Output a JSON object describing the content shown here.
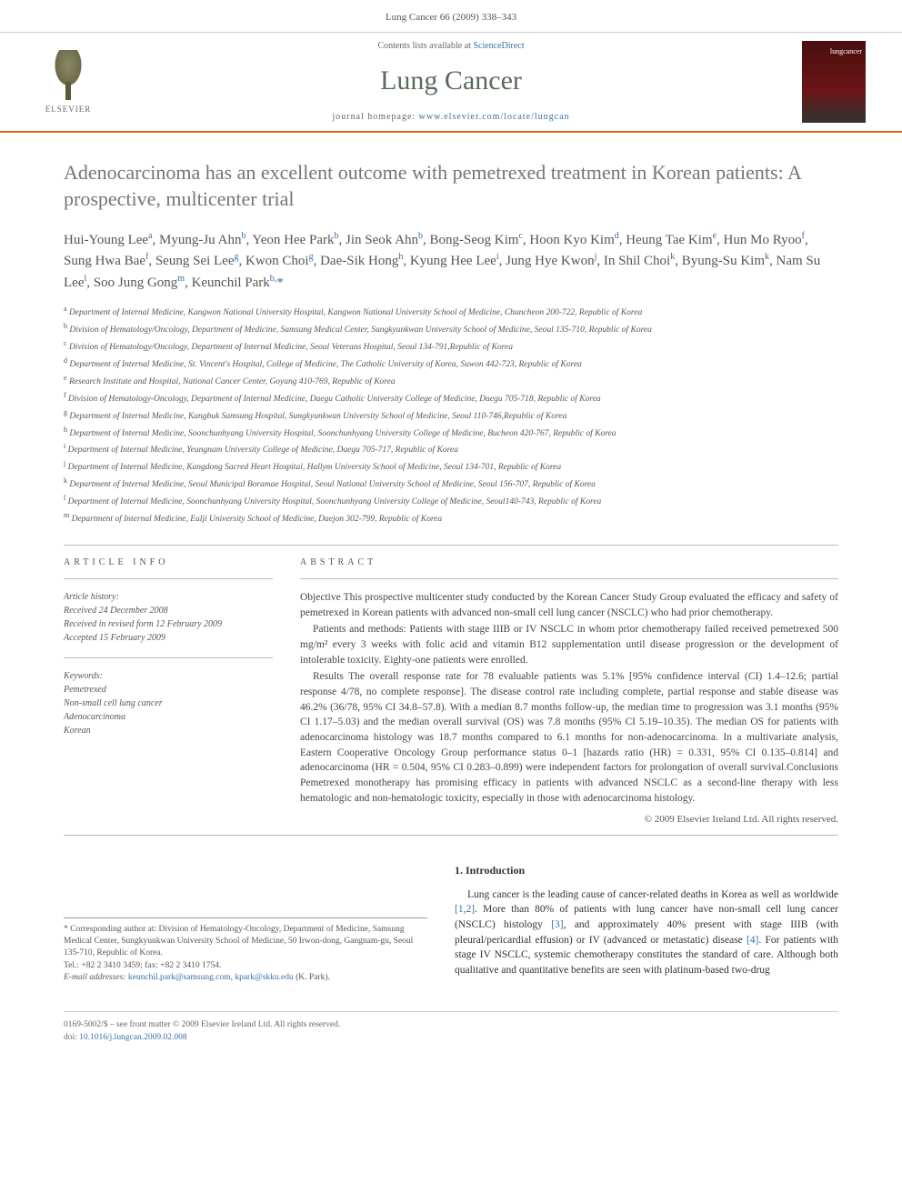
{
  "header": {
    "running_head": "Lung Cancer 66 (2009) 338–343"
  },
  "masthead": {
    "publisher": "ELSEVIER",
    "contents_prefix": "Contents lists available at ",
    "contents_link": "ScienceDirect",
    "journal": "Lung Cancer",
    "homepage_prefix": "journal homepage: ",
    "homepage_url": "www.elsevier.com/locate/lungcan",
    "cover_label": "lungcancer"
  },
  "article": {
    "title": "Adenocarcinoma has an excellent outcome with pemetrexed treatment in Korean patients: A prospective, multicenter trial",
    "authors_html": "Hui-Young Lee<sup>a</sup>, Myung-Ju Ahn<sup>b</sup>, Yeon Hee Park<sup>b</sup>, Jin Seok Ahn<sup>b</sup>, Bong-Seog Kim<sup>c</sup>, Hoon Kyo Kim<sup>d</sup>, Heung Tae Kim<sup>e</sup>, Hun Mo Ryoo<sup>f</sup>, Sung Hwa Bae<sup>f</sup>, Seung Sei Lee<sup>g</sup>, Kwon Choi<sup>g</sup>, Dae-Sik Hong<sup>h</sup>, Kyung Hee Lee<sup>i</sup>, Jung Hye Kwon<sup>j</sup>, In Shil Choi<sup>k</sup>, Byung-Su Kim<sup>k</sup>, Nam Su Lee<sup>l</sup>, Soo Jung Gong<sup>m</sup>, Keunchil Park<sup>b,</sup><span class=\"corr\">*</span>",
    "affiliations": [
      {
        "key": "a",
        "text": "Department of Internal Medicine, Kangwon National University Hospital, Kangwon National University School of Medicine, Chuncheon 200-722, Republic of Korea"
      },
      {
        "key": "b",
        "text": "Division of Hematology/Oncology, Department of Medicine, Samsung Medical Center, Sungkyunkwan University School of Medicine, Seoul 135-710, Republic of Korea"
      },
      {
        "key": "c",
        "text": "Division of Hematology/Oncology, Department of Internal Medicine, Seoul Veterans Hospital, Seoul 134-791,Republic of Korea"
      },
      {
        "key": "d",
        "text": "Department of Internal Medicine, St. Vincent's Hospital, College of Medicine, The Catholic University of Korea, Suwon 442-723, Republic of Korea"
      },
      {
        "key": "e",
        "text": "Research Institute and Hospital, National Cancer Center, Goyang 410-769, Republic of Korea"
      },
      {
        "key": "f",
        "text": "Division of Hematology-Oncology, Department of Internal Medicine, Daegu Catholic University College of Medicine, Daegu 705-718, Republic of Korea"
      },
      {
        "key": "g",
        "text": "Department of Internal Medicine, Kangbuk Samsung Hospital, Sungkyunkwan University School of Medicine, Seoul 110-746,Republic of Korea"
      },
      {
        "key": "h",
        "text": "Department of Internal Medicine, Soonchunhyang University Hospital, Soonchunhyang University College of Medicine, Bucheon 420-767, Republic of Korea"
      },
      {
        "key": "i",
        "text": "Department of Internal Medicine, Yeungnam University College of Medicine, Daegu 705-717, Republic of Korea"
      },
      {
        "key": "j",
        "text": "Department of Internal Medicine, Kangdong Sacred Heart Hospital, Hallym University School of Medicine, Seoul 134-701, Republic of Korea"
      },
      {
        "key": "k",
        "text": "Department of Internal Medicine, Seoul Municipal Boramae Hospital, Seoul National University School of Medicine, Seoul 156-707, Republic of Korea"
      },
      {
        "key": "l",
        "text": "Department of Internal Medicine, Soonchunhyang University Hospital, Soonchunhyang University College of Medicine, Seoul140-743, Republic of Korea"
      },
      {
        "key": "m",
        "text": "Department of Internal Medicine, Eulji University School of Medicine, Daejon 302-799, Republic of Korea"
      }
    ]
  },
  "article_info": {
    "label": "ARTICLE INFO",
    "history_label": "Article history:",
    "received": "Received 24 December 2008",
    "revised": "Received in revised form 12 February 2009",
    "accepted": "Accepted 15 February 2009",
    "keywords_label": "Keywords:",
    "keywords": [
      "Pemetrexed",
      "Non-small cell lung cancer",
      "Adenocarcinoma",
      "Korean"
    ]
  },
  "abstract": {
    "label": "ABSTRACT",
    "paragraphs": [
      "Objective This prospective multicenter study conducted by the Korean Cancer Study Group evaluated the efficacy and safety of pemetrexed in Korean patients with advanced non-small cell lung cancer (NSCLC) who had prior chemotherapy.",
      "Patients and methods: Patients with stage IIIB or IV NSCLC in whom prior chemotherapy failed received pemetrexed 500 mg/m² every 3 weeks with folic acid and vitamin B12 supplementation until disease progression or the development of intolerable toxicity. Eighty-one patients were enrolled.",
      "Results The overall response rate for 78 evaluable patients was 5.1% [95% confidence interval (CI) 1.4–12.6; partial response 4/78, no complete response]. The disease control rate including complete, partial response and stable disease was 46.2% (36/78, 95% CI 34.8–57.8). With a median 8.7 months follow-up, the median time to progression was 3.1 months (95% CI 1.17–5.03) and the median overall survival (OS) was 7.8 months (95% CI 5.19–10.35). The median OS for patients with adenocarcinoma histology was 18.7 months compared to 6.1 months for non-adenocarcinoma. In a multivariate analysis, Eastern Cooperative Oncology Group performance status 0–1 [hazards ratio (HR) = 0.331, 95% CI 0.135–0.814] and adenocarcinoma (HR = 0.504, 95% CI 0.283–0.899) were independent factors for prolongation of overall survival.Conclusions Pemetrexed monotherapy has promising efficacy in patients with advanced NSCLC as a second-line therapy with less hematologic and non-hematologic toxicity, especially in those with adenocarcinoma histology."
    ],
    "copyright": "© 2009 Elsevier Ireland Ltd. All rights reserved."
  },
  "corresponding": {
    "marker": "*",
    "label": "Corresponding author at: ",
    "text": "Division of Hematology-Oncology, Department of Medicine, Samsung Medical Center, Sungkyunkwan University School of Medicine, 50 Irwon-dong, Gangnam-gu, Seoul 135-710, Republic of Korea.",
    "tel": "Tel.: +82 2 3410 3459; fax: +82 2 3410 1754.",
    "email_label": "E-mail addresses:",
    "emails": "keunchil.park@samsung.com, kpark@skku.edu",
    "email_suffix": "(K. Park)."
  },
  "introduction": {
    "heading": "1. Introduction",
    "text": "Lung cancer is the leading cause of cancer-related deaths in Korea as well as worldwide [1,2]. More than 80% of patients with lung cancer have non-small cell lung cancer (NSCLC) histology [3], and approximately 40% present with stage IIIB (with pleural/pericardial effusion) or IV (advanced or metastatic) disease [4]. For patients with stage IV NSCLC, systemic chemotherapy constitutes the standard of care. Although both qualitative and quantitative benefits are seen with platinum-based two-drug"
  },
  "footer": {
    "issn": "0169-5002/$ – see front matter © 2009 Elsevier Ireland Ltd. All rights reserved.",
    "doi_label": "doi:",
    "doi": "10.1016/j.lungcan.2009.02.008"
  }
}
